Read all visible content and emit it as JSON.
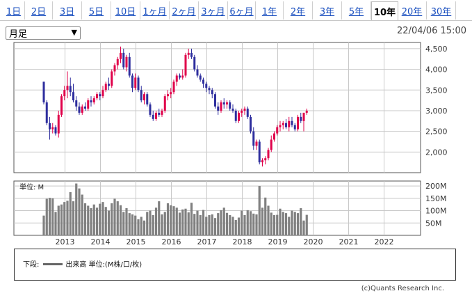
{
  "tabs": [
    {
      "label": "1日",
      "active": false
    },
    {
      "label": "2日",
      "active": false
    },
    {
      "label": "3日",
      "active": false
    },
    {
      "label": "5日",
      "active": false
    },
    {
      "label": "10日",
      "active": false
    },
    {
      "label": "1ヶ月",
      "active": false
    },
    {
      "label": "2ヶ月",
      "active": false
    },
    {
      "label": "3ヶ月",
      "active": false
    },
    {
      "label": "6ヶ月",
      "active": false
    },
    {
      "label": "1年",
      "active": false
    },
    {
      "label": "2年",
      "active": false
    },
    {
      "label": "3年",
      "active": false
    },
    {
      "label": "5年",
      "active": false
    },
    {
      "label": "10年",
      "active": true
    },
    {
      "label": "20年",
      "active": false
    },
    {
      "label": "30年",
      "active": false
    }
  ],
  "period_select": {
    "value": "月足"
  },
  "datetime": "22/04/06 15:00",
  "legend": {
    "prefix": "下段:",
    "text": "出来高 単位:(M株/口/枚)"
  },
  "credit": "(c)Quants Research Inc.",
  "colors": {
    "up": "#e0004a",
    "down": "#2e2e9e",
    "volume": "#808080",
    "grid": "#c8c8c8"
  },
  "chart_data": [
    {
      "type": "candlestick",
      "interval": "monthly",
      "x_ticks": [
        "2013",
        "2014",
        "2015",
        "2016",
        "2017",
        "2018",
        "2019",
        "2020",
        "2021",
        "2022"
      ],
      "y_ticks": [
        "2,000",
        "2,500",
        "3,000",
        "3,500",
        "4,000",
        "4,500"
      ],
      "ylim": [
        1500,
        4650
      ],
      "start": "2012-05",
      "ohlc": [
        [
          3700,
          3700,
          3150,
          3200
        ],
        [
          3200,
          3250,
          2650,
          2700
        ],
        [
          2700,
          2850,
          2300,
          2550
        ],
        [
          2550,
          2700,
          2450,
          2600
        ],
        [
          2600,
          2650,
          2400,
          2450
        ],
        [
          2450,
          3000,
          2350,
          2900
        ],
        [
          2900,
          3400,
          2850,
          3350
        ],
        [
          3350,
          3600,
          3250,
          3500
        ],
        [
          3500,
          3950,
          3300,
          3600
        ],
        [
          3600,
          3800,
          3350,
          3450
        ],
        [
          3450,
          3650,
          3200,
          3250
        ],
        [
          3250,
          3350,
          3000,
          3100
        ],
        [
          3100,
          3200,
          2900,
          2950
        ],
        [
          2950,
          3150,
          2900,
          3100
        ],
        [
          3100,
          3200,
          3000,
          3050
        ],
        [
          3050,
          3300,
          3000,
          3250
        ],
        [
          3250,
          3350,
          3100,
          3200
        ],
        [
          3200,
          3350,
          3150,
          3300
        ],
        [
          3300,
          3450,
          3250,
          3400
        ],
        [
          3400,
          3450,
          3250,
          3350
        ],
        [
          3350,
          3600,
          3300,
          3500
        ],
        [
          3500,
          3700,
          3450,
          3650
        ],
        [
          3650,
          3800,
          3500,
          3600
        ],
        [
          3600,
          4000,
          3550,
          3950
        ],
        [
          3950,
          4150,
          3850,
          4100
        ],
        [
          4100,
          4300,
          4000,
          4250
        ],
        [
          4250,
          4550,
          4150,
          4400
        ],
        [
          4400,
          4500,
          4000,
          4050
        ],
        [
          4050,
          4350,
          3950,
          4300
        ],
        [
          4300,
          4400,
          3800,
          3850
        ],
        [
          3850,
          3900,
          3450,
          3550
        ],
        [
          3550,
          3900,
          3500,
          3800
        ],
        [
          3800,
          3850,
          3450,
          3500
        ],
        [
          3500,
          3600,
          3200,
          3250
        ],
        [
          3250,
          3450,
          3150,
          3400
        ],
        [
          3400,
          3450,
          3100,
          3150
        ],
        [
          3150,
          3200,
          2850,
          2900
        ],
        [
          2900,
          3000,
          2750,
          2800
        ],
        [
          2800,
          3000,
          2750,
          2950
        ],
        [
          2950,
          3050,
          2850,
          2900
        ],
        [
          2900,
          3050,
          2850,
          3000
        ],
        [
          3000,
          3400,
          2950,
          3350
        ],
        [
          3350,
          3500,
          3250,
          3400
        ],
        [
          3400,
          3550,
          3300,
          3450
        ],
        [
          3450,
          3750,
          3400,
          3700
        ],
        [
          3700,
          3900,
          3600,
          3850
        ],
        [
          3850,
          3900,
          3750,
          3800
        ],
        [
          3800,
          4000,
          3750,
          3850
        ],
        [
          3850,
          4400,
          3800,
          4350
        ],
        [
          4350,
          4500,
          4250,
          4400
        ],
        [
          4400,
          4500,
          4250,
          4300
        ],
        [
          4300,
          4350,
          3950,
          4000
        ],
        [
          4000,
          4100,
          3800,
          3850
        ],
        [
          3850,
          3900,
          3700,
          3750
        ],
        [
          3750,
          3800,
          3550,
          3650
        ],
        [
          3650,
          3700,
          3450,
          3550
        ],
        [
          3550,
          3600,
          3400,
          3500
        ],
        [
          3500,
          3550,
          3300,
          3400
        ],
        [
          3400,
          3450,
          3050,
          3100
        ],
        [
          3100,
          3200,
          2900,
          3000
        ],
        [
          3000,
          3250,
          2950,
          3200
        ],
        [
          3200,
          3300,
          3050,
          3150
        ],
        [
          3150,
          3250,
          3050,
          3200
        ],
        [
          3200,
          3250,
          3000,
          3050
        ],
        [
          3050,
          3150,
          2950,
          3000
        ],
        [
          3000,
          3050,
          2700,
          2750
        ],
        [
          2750,
          3000,
          2700,
          2950
        ],
        [
          2950,
          3050,
          2850,
          3000
        ],
        [
          3000,
          3100,
          2900,
          3050
        ],
        [
          3050,
          3100,
          2800,
          2850
        ],
        [
          2850,
          2900,
          2450,
          2500
        ],
        [
          2500,
          2600,
          2050,
          2150
        ],
        [
          2150,
          2300,
          2050,
          2250
        ],
        [
          2250,
          2300,
          1700,
          1750
        ],
        [
          1750,
          1850,
          1650,
          1800
        ],
        [
          1800,
          1900,
          1700,
          1850
        ],
        [
          1850,
          2100,
          1800,
          2050
        ],
        [
          2050,
          2400,
          2000,
          2300
        ],
        [
          2300,
          2500,
          2250,
          2450
        ],
        [
          2450,
          2650,
          2400,
          2600
        ],
        [
          2600,
          2750,
          2500,
          2650
        ],
        [
          2650,
          2750,
          2550,
          2700
        ],
        [
          2700,
          2800,
          2550,
          2600
        ],
        [
          2600,
          2850,
          2500,
          2750
        ],
        [
          2750,
          2850,
          2600,
          2650
        ],
        [
          2650,
          2700,
          2500,
          2550
        ],
        [
          2550,
          2900,
          2500,
          2850
        ],
        [
          2850,
          2950,
          2700,
          2750
        ],
        [
          2750,
          2950,
          2500,
          2950
        ],
        [
          2950,
          3050,
          2900,
          3000
        ]
      ]
    },
    {
      "type": "bar",
      "unit_label": "単位: M",
      "y_ticks": [
        "50M",
        "100M",
        "150M",
        "200M"
      ],
      "ylim": [
        0,
        220
      ],
      "values": [
        80,
        148,
        152,
        150,
        95,
        120,
        125,
        135,
        140,
        175,
        138,
        210,
        190,
        165,
        130,
        120,
        110,
        125,
        112,
        128,
        135,
        115,
        100,
        130,
        148,
        138,
        122,
        95,
        110,
        90,
        85,
        80,
        65,
        75,
        60,
        95,
        100,
        82,
        112,
        138,
        85,
        95,
        130,
        122,
        118,
        112,
        92,
        105,
        108,
        93,
        132,
        87,
        100,
        82,
        103,
        75,
        82,
        85,
        70,
        90,
        102,
        112,
        91,
        82,
        75,
        62,
        72,
        100,
        82,
        102,
        98,
        88,
        85,
        200,
        112,
        153,
        120,
        92,
        82,
        83,
        108,
        95,
        90,
        75,
        100,
        95,
        90,
        110,
        60,
        83
      ]
    }
  ]
}
